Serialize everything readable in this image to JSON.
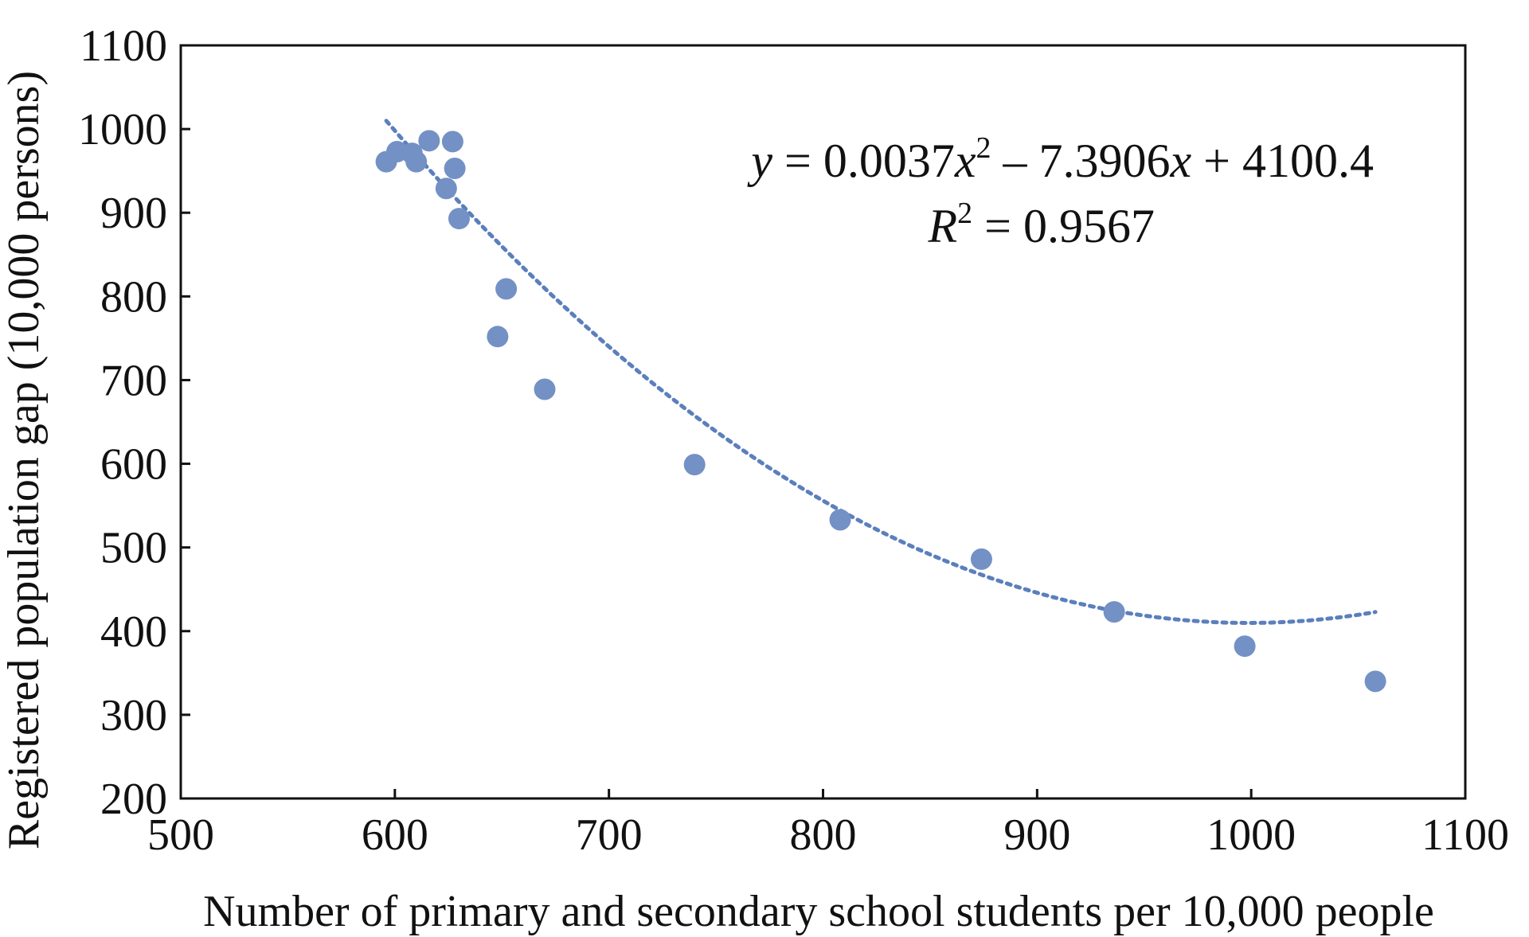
{
  "chart_data": {
    "type": "scatter",
    "xlabel": "Number of primary and secondary school students per 10,000 people",
    "ylabel": "Registered population gap (10,000 persons)",
    "xlim": [
      500,
      1100
    ],
    "ylim": [
      200,
      1100
    ],
    "xticks": [
      "500",
      "600",
      "700",
      "800",
      "900",
      "1000",
      "1100"
    ],
    "yticks": [
      "200",
      "300",
      "400",
      "500",
      "600",
      "700",
      "800",
      "900",
      "1000",
      "1100"
    ],
    "grid": false,
    "marker_color": "#7391c4",
    "trend_color": "#5b7fbd",
    "points": [
      {
        "x": 596,
        "y": 961
      },
      {
        "x": 601,
        "y": 973
      },
      {
        "x": 608,
        "y": 971
      },
      {
        "x": 610,
        "y": 961
      },
      {
        "x": 616,
        "y": 986
      },
      {
        "x": 624,
        "y": 929
      },
      {
        "x": 627,
        "y": 985
      },
      {
        "x": 628,
        "y": 953
      },
      {
        "x": 630,
        "y": 893
      },
      {
        "x": 652,
        "y": 809
      },
      {
        "x": 648,
        "y": 752
      },
      {
        "x": 670,
        "y": 689
      },
      {
        "x": 740,
        "y": 599
      },
      {
        "x": 808,
        "y": 533
      },
      {
        "x": 874,
        "y": 486
      },
      {
        "x": 936,
        "y": 423
      },
      {
        "x": 997,
        "y": 382
      },
      {
        "x": 1058,
        "y": 340
      }
    ],
    "trendline": {
      "type": "polynomial",
      "coefficients": [
        0.0037,
        -7.3906,
        4100.4
      ],
      "x_range": [
        596,
        1058
      ],
      "equation_y": "y",
      "equation_rest": " = 0.0037",
      "equation_x1": "x",
      "equation_sup": "2",
      "equation_mid": " – 7.3906",
      "equation_x2": "x",
      "equation_end": " + 4100.4",
      "r2_label": "R",
      "r2_sup": "2",
      "r2_value": " = 0.9567"
    }
  }
}
